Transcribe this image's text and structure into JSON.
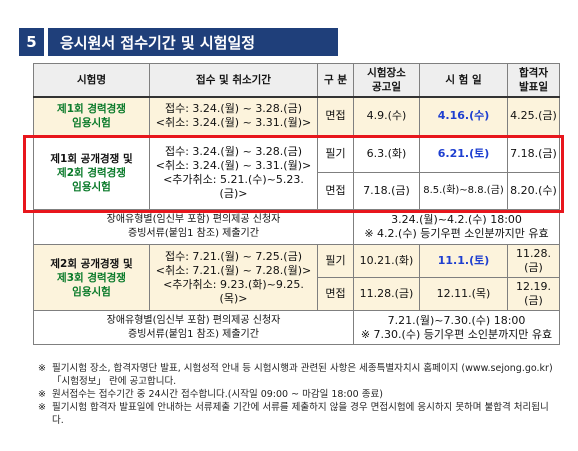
{
  "header": {
    "number": "5",
    "title": "응시원서 접수기간 및 시험일정"
  },
  "table": {
    "columns": [
      "시험명",
      "접수 및 취소기간",
      "구 분",
      "시험장소\n공고일",
      "시 험 일",
      "합격자\n발표일"
    ],
    "rows": [
      {
        "name_line1": "제1회 경력경쟁",
        "name_line2": "임용시험",
        "period": [
          "접수: 3.24.(월) ~ 3.28.(금)",
          "<취소: 3.24.(월) ~ 3.31.(월)>"
        ],
        "type": "면접",
        "notice": "4.9.(수)",
        "exam": "4.16.(수)",
        "result": "4.25.(금)"
      },
      {
        "name_line1": "제1회 공개경쟁 및",
        "name_line2": "제2회 경력경쟁",
        "name_line3": "임용시험",
        "period": [
          "접수: 3.24.(월) ~ 3.28.(금)",
          "<취소: 3.24.(월) ~ 3.31.(월)>",
          "<추가취소: 5.21.(수)~5.23.(금)>"
        ],
        "sub": [
          {
            "type": "필기",
            "notice": "6.3.(화)",
            "exam": "6.21.(토)",
            "result": "7.18.(금)"
          },
          {
            "type": "면접",
            "notice": "7.18.(금)",
            "exam": "8.5.(화)~8.8.(금)",
            "result": "8.20.(수)"
          }
        ]
      },
      {
        "left": [
          "장애유형별(임신부 포함) 편의제공 신청자",
          "증빙서류(붙임1 참조) 제출기간"
        ],
        "right": [
          "3.24.(월)~4.2.(수) 18:00",
          "※ 4.2.(수) 등기우편 소인분까지만 유효"
        ]
      },
      {
        "name_line1": "제2회 공개경쟁 및",
        "name_line2": "제3회 경력경쟁",
        "name_line3": "임용시험",
        "period": [
          "접수: 7.21.(월) ~ 7.25.(금)",
          "<취소: 7.21.(월) ~ 7.28.(월)>",
          "<추가취소: 9.23.(화)~9.25.(목)>"
        ],
        "sub": [
          {
            "type": "필기",
            "notice": "10.21.(화)",
            "exam": "11.1.(토)",
            "result": "11.28.(금)"
          },
          {
            "type": "면접",
            "notice": "11.28.(금)",
            "exam": "12.11.(목)",
            "result": "12.19.(금)"
          }
        ]
      },
      {
        "left": [
          "장애유형별(임신부 포함) 편의제공 신청자",
          "증빙서류(붙임1 참조) 제출기간"
        ],
        "right": [
          "7.21.(월)~7.30.(수) 18:00",
          "※ 7.30.(수) 등기우편 소인분까지만 유효"
        ]
      }
    ]
  },
  "notes": [
    "필기시험 장소, 합격자명단 발표, 시험성적 안내 등 시험시행과 관련된 사항은 세종특별자치시 홈페이지 (www.sejong.go.kr) 「시험정보」 란에 공고합니다.",
    "원서접수는 접수기간 중 24시간 접수합니다.(시작일 09:00 ~ 마감일 18:00 종료)",
    "필기시험 합격자 발표일에 안내하는 서류제출 기간에 서류를 제출하지 않을 경우 면접시험에 응시하지 못하며 불합격 처리됩니다."
  ],
  "note_marker": "※"
}
